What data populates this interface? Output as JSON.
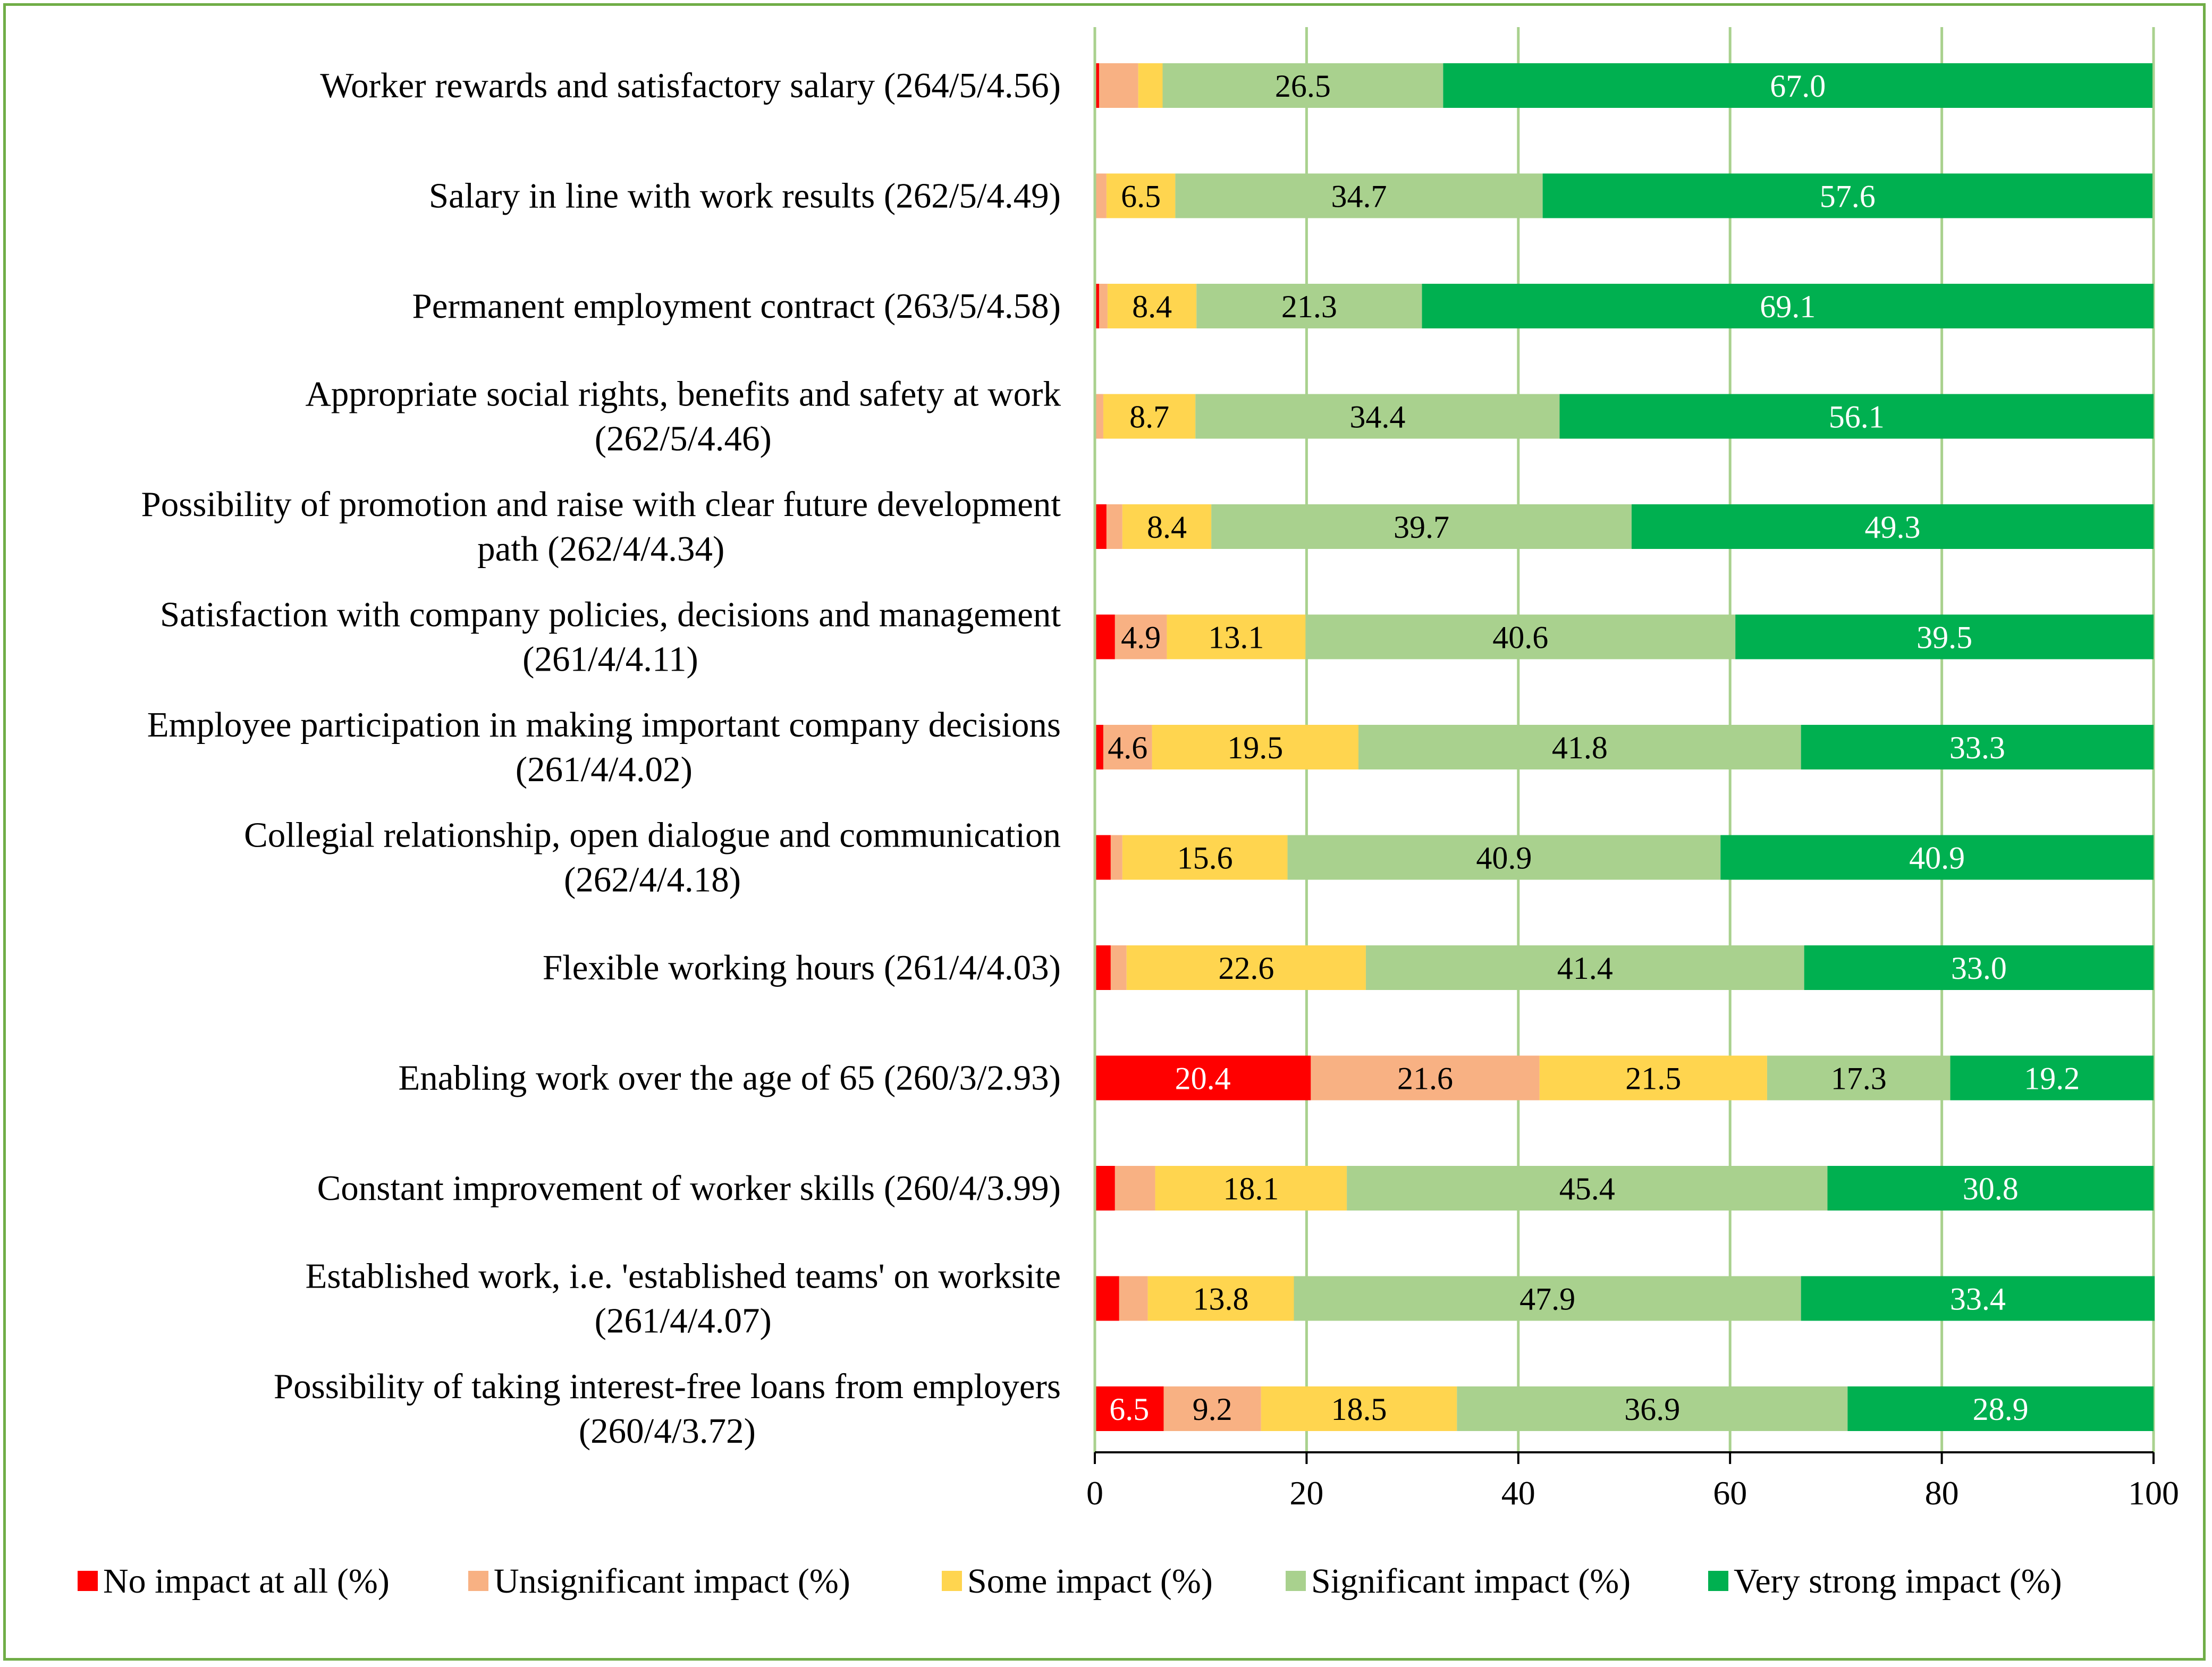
{
  "chart_data": {
    "type": "bar",
    "orientation": "horizontal",
    "stacked": true,
    "categories": [
      [
        "Worker rewards and satisfactory salary (264/5/4.56)"
      ],
      [
        "Salary in line with work results (262/5/4.49)"
      ],
      [
        "Permanent employment contract (263/5/4.58)"
      ],
      [
        "Appropriate social rights, benefits and safety at work",
        "(262/5/4.46)"
      ],
      [
        "Possibility of promotion and raise with clear future development",
        "path (262/4/4.34)"
      ],
      [
        "Satisfaction with company policies, decisions and management",
        "(261/4/4.11)"
      ],
      [
        "Employee participation in making important company decisions",
        "(261/4/4.02)"
      ],
      [
        "Collegial relationship, open dialogue and communication",
        "(262/4/4.18)"
      ],
      [
        "Flexible working hours  (261/4/4.03)"
      ],
      [
        "Enabling work over the age of 65  (260/3/2.93)"
      ],
      [
        "Constant improvement of worker skills (260/4/3.99)"
      ],
      [
        "Established work, i.e. 'established teams' on worksite",
        "(261/4/4.07)"
      ],
      [
        "Possibility of taking interest-free loans from employers",
        "(260/4/3.72)"
      ]
    ],
    "series": [
      {
        "name": "No impact at all (%)",
        "color": "#FF0000",
        "label_color": "#FFFFFF",
        "values": [
          0.4,
          0.0,
          0.4,
          0.0,
          1.1,
          1.9,
          0.8,
          1.5,
          1.5,
          20.4,
          1.9,
          2.3,
          6.5
        ],
        "labels": [
          "",
          "",
          "",
          "",
          "",
          "",
          "",
          "",
          "",
          "20.4",
          "",
          "",
          "6.5"
        ]
      },
      {
        "name": "Unsignificant impact (%)",
        "color": "#F8B183",
        "label_color": "#000000",
        "values": [
          3.7,
          1.1,
          0.8,
          0.8,
          1.5,
          4.9,
          4.6,
          1.1,
          1.5,
          21.6,
          3.8,
          2.7,
          9.2
        ],
        "labels": [
          "",
          "",
          "",
          "",
          "",
          "4.9",
          "4.6",
          "",
          "",
          "21.6",
          "",
          "",
          "9.2"
        ]
      },
      {
        "name": "Some impact (%)",
        "color": "#FFD54F",
        "label_color": "#000000",
        "values": [
          2.3,
          6.5,
          8.4,
          8.7,
          8.4,
          13.1,
          19.5,
          15.6,
          22.6,
          21.5,
          18.1,
          13.8,
          18.5
        ],
        "labels": [
          "",
          "6.5",
          "8.4",
          "8.7",
          "8.4",
          "13.1",
          "19.5",
          "15.6",
          "22.6",
          "21.5",
          "18.1",
          "13.8",
          "18.5"
        ]
      },
      {
        "name": "Significant impact (%)",
        "color": "#A9D18E",
        "label_color": "#000000",
        "values": [
          26.5,
          34.7,
          21.3,
          34.4,
          39.7,
          40.6,
          41.8,
          40.9,
          41.4,
          17.3,
          45.4,
          47.9,
          36.9
        ],
        "labels": [
          "26.5",
          "34.7",
          "21.3",
          "34.4",
          "39.7",
          "40.6",
          "41.8",
          "40.9",
          "41.4",
          "17.3",
          "45.4",
          "47.9",
          "36.9"
        ]
      },
      {
        "name": "Very strong impact (%)",
        "color": "#00B050",
        "label_color": "#FFFFFF",
        "values": [
          67.0,
          57.6,
          69.1,
          56.1,
          49.3,
          39.5,
          33.3,
          40.9,
          33.0,
          19.2,
          30.8,
          33.4,
          28.9
        ],
        "labels": [
          "67.0",
          "57.6",
          "69.1",
          "56.1",
          "49.3",
          "39.5",
          "33.3",
          "40.9",
          "33.0",
          "19.2",
          "30.8",
          "33.4",
          "28.9"
        ]
      }
    ],
    "xlim": [
      0,
      100
    ],
    "xticks": [
      0,
      20,
      40,
      60,
      80,
      100
    ],
    "xtick_labels": [
      "0",
      "20",
      "40",
      "60",
      "80",
      "100"
    ],
    "grid": true,
    "grid_color": "#A9D18E",
    "legend_position": "bottom",
    "title": "",
    "xlabel": "",
    "ylabel": ""
  }
}
